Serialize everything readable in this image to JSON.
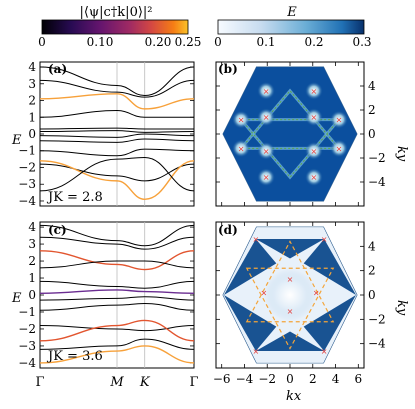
{
  "colorbar_left": {
    "label": "|⟨ψ|c†k|0⟩|²",
    "ticks": [
      "0",
      "0.10",
      "0.20",
      "0.25"
    ],
    "range": [
      0,
      0.25
    ],
    "colormap": "inferno"
  },
  "colorbar_right": {
    "label": "E",
    "ticks": [
      "0",
      "0.1",
      "0.2",
      "0.3"
    ],
    "range": [
      0,
      0.3
    ],
    "colormap": "blues"
  },
  "panels": {
    "a": {
      "tag": "(a)",
      "annotation": "JK = 2.8"
    },
    "b": {
      "tag": "(b)"
    },
    "c": {
      "tag": "(c)",
      "annotation": "JK = 3.6"
    },
    "d": {
      "tag": "(d)"
    }
  },
  "axes": {
    "band_ylabel": "E",
    "band_yticks": [
      "4",
      "3",
      "2",
      "1",
      "0",
      "−1",
      "−2",
      "−3",
      "−4"
    ],
    "band_xticks": [
      "Γ",
      "M",
      "K",
      "Γ"
    ],
    "bz_ylabel": "ky",
    "bz_xlabel": "kx",
    "bz_yticks": [
      "4",
      "2",
      "0",
      "−2",
      "−4"
    ],
    "bz_xticks": [
      "−6",
      "−4",
      "−2",
      "0",
      "2",
      "4",
      "6"
    ]
  },
  "chart_data": [
    {
      "panel": "a",
      "type": "line",
      "x_path": [
        "Γ",
        "M",
        "K",
        "Γ"
      ],
      "ylim": [
        -4.3,
        4.3
      ],
      "series": [
        {
          "color": "#000000",
          "values": [
            4.0,
            2.9,
            2.3,
            4.0
          ]
        },
        {
          "color": "#000000",
          "values": [
            3.2,
            2.5,
            2.2,
            3.2
          ]
        },
        {
          "color": "#f7a13a",
          "values": [
            2.1,
            2.4,
            1.5,
            2.1
          ]
        },
        {
          "color": "#000000",
          "values": [
            1.0,
            1.4,
            1.0,
            1.0
          ]
        },
        {
          "color": "#000000",
          "values": [
            0.3,
            0.35,
            0.3,
            0.3
          ]
        },
        {
          "color": "#000000",
          "values": [
            0.15,
            0.2,
            0.1,
            0.15
          ]
        },
        {
          "color": "#000000",
          "values": [
            -0.1,
            -0.2,
            0.0,
            -0.1
          ]
        },
        {
          "color": "#000000",
          "values": [
            -0.4,
            -0.5,
            -0.3,
            -0.4
          ]
        },
        {
          "color": "#000000",
          "values": [
            -1.0,
            -1.3,
            -0.9,
            -1.0
          ]
        },
        {
          "color": "#000000",
          "values": [
            -1.8,
            -2.5,
            -2.8,
            -1.8
          ]
        },
        {
          "color": "#f7a13a",
          "values": [
            -1.6,
            -2.8,
            -3.9,
            -1.6
          ]
        },
        {
          "color": "#000000",
          "values": [
            -3.4,
            -1.5,
            -1.4,
            -3.4
          ]
        }
      ]
    },
    {
      "panel": "c",
      "type": "line",
      "x_path": [
        "Γ",
        "M",
        "K",
        "Γ"
      ],
      "ylim": [
        -4.3,
        4.3
      ],
      "series": [
        {
          "color": "#000000",
          "values": [
            4.1,
            3.2,
            2.9,
            4.1
          ]
        },
        {
          "color": "#000000",
          "values": [
            3.4,
            3.0,
            2.7,
            3.4
          ]
        },
        {
          "color": "#e2552f",
          "values": [
            2.6,
            1.8,
            1.5,
            2.6
          ]
        },
        {
          "color": "#000000",
          "values": [
            1.6,
            2.0,
            2.0,
            1.6
          ]
        },
        {
          "color": "#000000",
          "values": [
            0.8,
            0.5,
            0.4,
            0.8
          ]
        },
        {
          "color": "#6a2c91",
          "values": [
            0.1,
            0.3,
            0.2,
            0.1
          ]
        },
        {
          "color": "#000000",
          "values": [
            -0.3,
            -0.2,
            -0.1,
            -0.3
          ]
        },
        {
          "color": "#000000",
          "values": [
            -0.9,
            -0.6,
            -0.5,
            -0.9
          ]
        },
        {
          "color": "#000000",
          "values": [
            -1.8,
            -2.0,
            -2.1,
            -1.8
          ]
        },
        {
          "color": "#e2552f",
          "values": [
            -2.7,
            -1.8,
            -1.5,
            -2.7
          ]
        },
        {
          "color": "#000000",
          "values": [
            -3.2,
            -3.0,
            -2.6,
            -3.2
          ]
        },
        {
          "color": "#f7a13a",
          "values": [
            -4.0,
            -3.3,
            -3.0,
            -4.0
          ]
        }
      ]
    },
    {
      "panel": "b",
      "type": "heatmap",
      "xlim": [
        -6.5,
        6.5
      ],
      "ylim": [
        -6,
        6
      ],
      "shape": "hexagon",
      "background_value": 0.3,
      "dot_pockets": [
        [
          -4.3,
          1.2
        ],
        [
          4.3,
          1.2
        ],
        [
          -4.3,
          -1.2
        ],
        [
          4.3,
          -1.2
        ],
        [
          -2.1,
          3.6
        ],
        [
          2.1,
          3.6
        ],
        [
          -2.1,
          -3.6
        ],
        [
          2.1,
          -3.6
        ],
        [
          -2.1,
          1.4
        ],
        [
          2.1,
          1.4
        ],
        [
          -2.1,
          -1.4
        ],
        [
          2.1,
          -1.4
        ]
      ]
    },
    {
      "panel": "d",
      "type": "heatmap",
      "xlim": [
        -6.5,
        6.5
      ],
      "ylim": [
        -6,
        6
      ],
      "shape": "hexagon",
      "background_value": 0.05,
      "markers": [
        [
          -5.2,
          3.0
        ],
        [
          5.2,
          3.0
        ],
        [
          -5.2,
          -3.0
        ],
        [
          5.2,
          -3.0
        ],
        [
          0,
          1.3
        ],
        [
          0,
          -1.3
        ],
        [
          -2.3,
          0.2
        ],
        [
          2.3,
          0.2
        ],
        [
          -3.0,
          4.6
        ],
        [
          3.0,
          4.6
        ],
        [
          -3.0,
          -4.6
        ],
        [
          3.0,
          -4.6
        ]
      ]
    }
  ]
}
